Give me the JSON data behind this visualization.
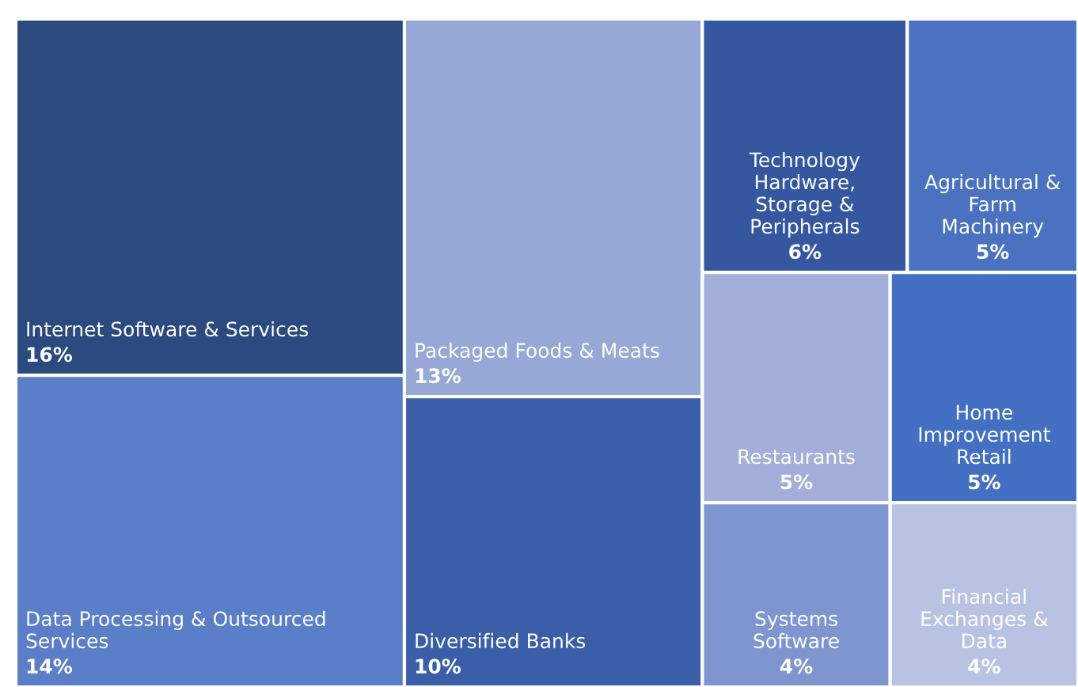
{
  "chart_data": {
    "type": "other",
    "categories": [
      "Internet Software & Services",
      "Data Processing & Outsourced Services",
      "Packaged Foods & Meats",
      "Diversified Banks",
      "Technology Hardware, Storage & Peripherals",
      "Agricultural & Farm Machinery",
      "Restaurants",
      "Home Improvement Retail",
      "Systems Software",
      "Financial Exchanges & Data"
    ],
    "values": [
      16,
      14,
      13,
      10,
      6,
      5,
      5,
      5,
      4,
      4
    ],
    "value_labels": [
      "16%",
      "14%",
      "13%",
      "10%",
      "6%",
      "5%",
      "5%",
      "5%",
      "4%",
      "4%"
    ],
    "colors": [
      "#2b4a80",
      "#5b7ec8",
      "#97a8d6",
      "#3a5ea8",
      "#3457a0",
      "#4a72c0",
      "#a3afda",
      "#4470c4",
      "#7f95cf",
      "#b8c3e3"
    ]
  }
}
